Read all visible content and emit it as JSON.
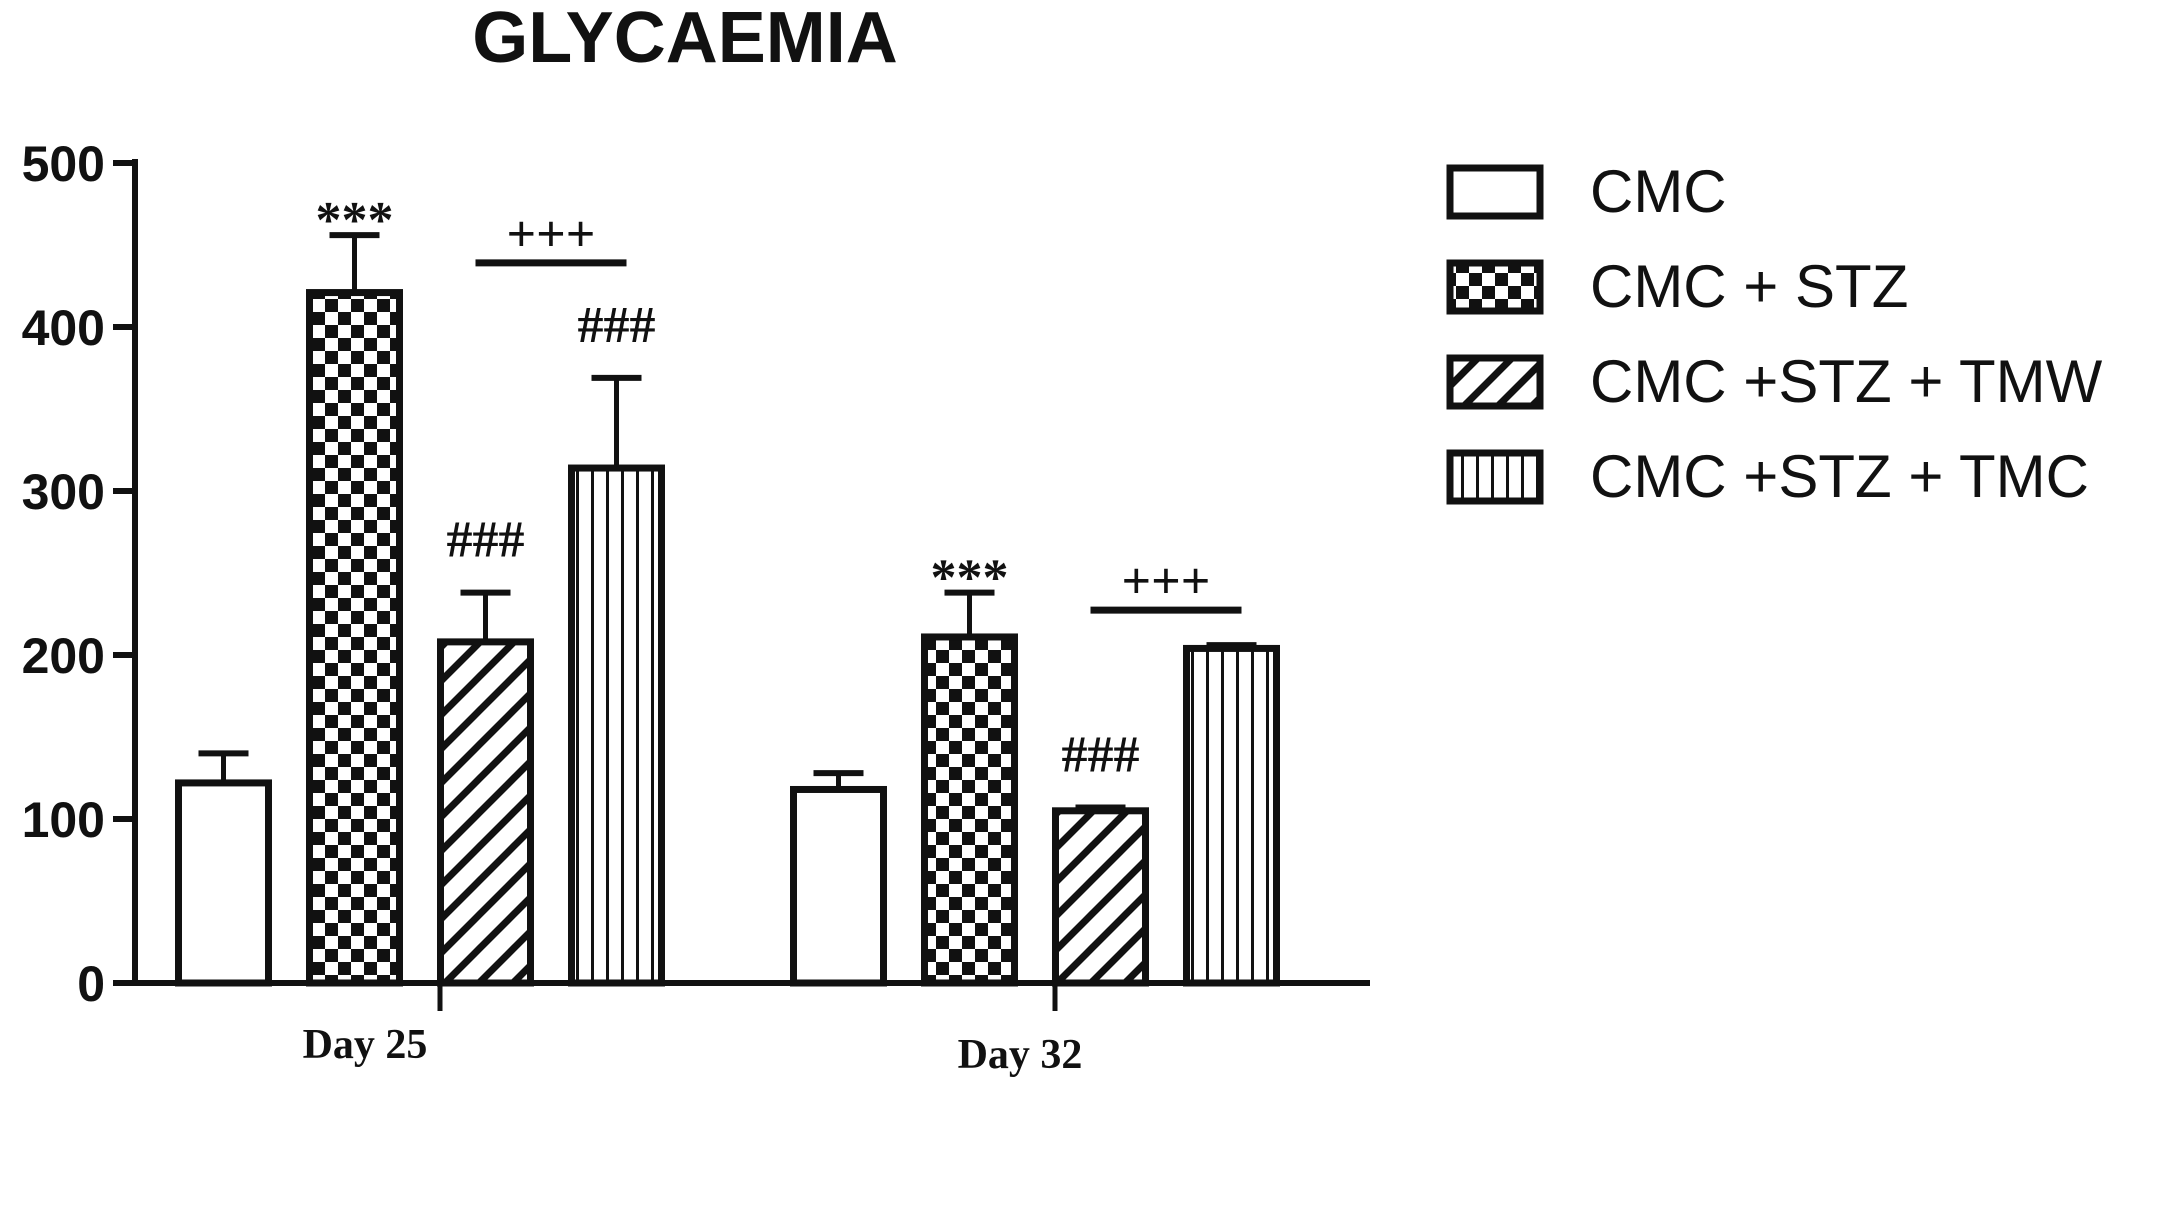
{
  "chart_data": {
    "type": "bar",
    "title": "GLYCAEMIA",
    "xlabel": "",
    "ylabel": "",
    "ylim": [
      0,
      500
    ],
    "yticks": [
      "0",
      "100",
      "200",
      "300",
      "400",
      "500"
    ],
    "categories": [
      "Day 25",
      "Day 32"
    ],
    "series": [
      {
        "name": "CMC",
        "values": [
          122,
          118
        ],
        "errors": [
          18,
          10
        ],
        "pattern": "plain",
        "annotations": [
          "",
          ""
        ]
      },
      {
        "name": "CMC + STZ",
        "values": [
          421,
          211
        ],
        "errors": [
          35,
          27
        ],
        "pattern": "checker",
        "annotations": [
          "***",
          "***"
        ]
      },
      {
        "name": "CMC +STZ + TMW",
        "values": [
          208,
          105
        ],
        "errors": [
          30,
          2
        ],
        "pattern": "diagonal",
        "annotations": [
          "###",
          "###"
        ]
      },
      {
        "name": "CMC +STZ + TMC",
        "values": [
          314,
          204
        ],
        "errors": [
          55,
          2
        ],
        "pattern": "vertical",
        "annotations": [
          "###",
          ""
        ]
      }
    ],
    "group_annotations": [
      "+++",
      "+++"
    ],
    "grid": false,
    "legend": "right",
    "colors": {
      "fill": "#ffffff",
      "stroke": "#111111"
    }
  }
}
